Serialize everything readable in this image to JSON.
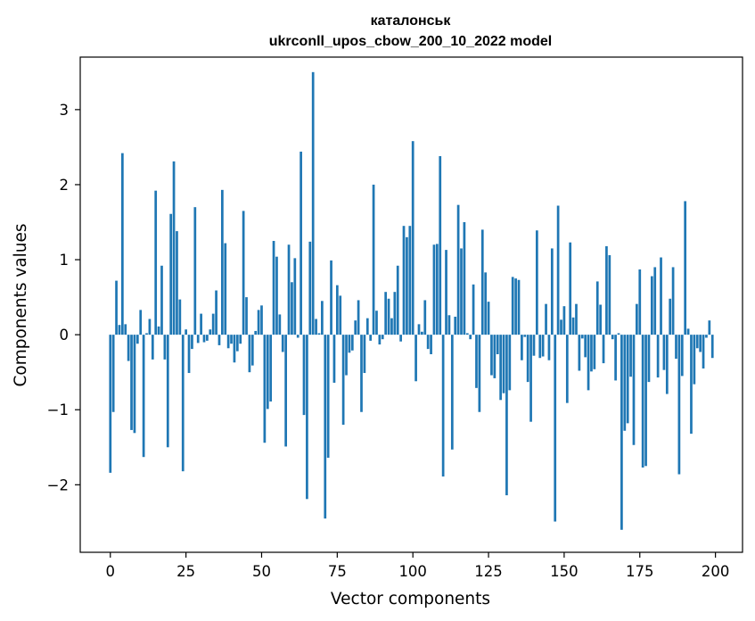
{
  "chart_data": {
    "type": "bar",
    "title": "каталонськ",
    "subtitle": "ukrconll_upos_cbow_200_10_2022 model",
    "xlabel": "Vector components",
    "ylabel": "Components values",
    "xlim": [
      -9.95,
      208.95
    ],
    "ylim": [
      -2.9,
      3.7
    ],
    "xticks": [
      0,
      25,
      50,
      75,
      100,
      125,
      150,
      175,
      200
    ],
    "yticks": [
      -2,
      -1,
      0,
      1,
      2,
      3
    ],
    "xtick_labels": [
      "0",
      "25",
      "50",
      "75",
      "100",
      "125",
      "150",
      "175",
      "200"
    ],
    "ytick_labels": [
      "−2",
      "−1",
      "0",
      "1",
      "2",
      "3"
    ],
    "bar_color": "#1f77b4",
    "grid": false,
    "legend": "none",
    "x": [
      0,
      1,
      2,
      3,
      4,
      5,
      6,
      7,
      8,
      9,
      10,
      11,
      12,
      13,
      14,
      15,
      16,
      17,
      18,
      19,
      20,
      21,
      22,
      23,
      24,
      25,
      26,
      27,
      28,
      29,
      30,
      31,
      32,
      33,
      34,
      35,
      36,
      37,
      38,
      39,
      40,
      41,
      42,
      43,
      44,
      45,
      46,
      47,
      48,
      49,
      50,
      51,
      52,
      53,
      54,
      55,
      56,
      57,
      58,
      59,
      60,
      61,
      62,
      63,
      64,
      65,
      66,
      67,
      68,
      69,
      70,
      71,
      72,
      73,
      74,
      75,
      76,
      77,
      78,
      79,
      80,
      81,
      82,
      83,
      84,
      85,
      86,
      87,
      88,
      89,
      90,
      91,
      92,
      93,
      94,
      95,
      96,
      97,
      98,
      99,
      100,
      101,
      102,
      103,
      104,
      105,
      106,
      107,
      108,
      109,
      110,
      111,
      112,
      113,
      114,
      115,
      116,
      117,
      118,
      119,
      120,
      121,
      122,
      123,
      124,
      125,
      126,
      127,
      128,
      129,
      130,
      131,
      132,
      133,
      134,
      135,
      136,
      137,
      138,
      139,
      140,
      141,
      142,
      143,
      144,
      145,
      146,
      147,
      148,
      149,
      150,
      151,
      152,
      153,
      154,
      155,
      156,
      157,
      158,
      159,
      160,
      161,
      162,
      163,
      164,
      165,
      166,
      167,
      168,
      169,
      170,
      171,
      172,
      173,
      174,
      175,
      176,
      177,
      178,
      179,
      180,
      181,
      182,
      183,
      184,
      185,
      186,
      187,
      188,
      189,
      190,
      191,
      192,
      193,
      194,
      195,
      196,
      197,
      198,
      199
    ],
    "values": [
      -1.84,
      -1.03,
      0.72,
      0.13,
      2.42,
      0.14,
      -0.35,
      -1.27,
      -1.31,
      -0.12,
      0.33,
      -1.63,
      0.02,
      0.21,
      -0.33,
      1.92,
      0.11,
      0.92,
      -0.33,
      -1.5,
      1.61,
      2.31,
      1.38,
      0.47,
      -1.82,
      0.07,
      -0.51,
      -0.19,
      1.7,
      -0.11,
      0.28,
      -0.1,
      -0.08,
      0.07,
      0.28,
      0.59,
      -0.14,
      1.93,
      1.22,
      -0.18,
      -0.12,
      -0.37,
      -0.22,
      -0.12,
      1.65,
      0.5,
      -0.5,
      -0.41,
      0.05,
      0.33,
      0.39,
      -1.44,
      -0.99,
      -0.89,
      1.25,
      1.04,
      0.27,
      -0.23,
      -1.49,
      1.2,
      0.7,
      1.02,
      -0.04,
      2.44,
      -1.07,
      -2.19,
      1.24,
      3.5,
      0.21,
      0.02,
      0.45,
      -2.45,
      -1.64,
      0.99,
      -0.64,
      0.66,
      0.52,
      -1.2,
      -0.54,
      -0.24,
      -0.21,
      0.19,
      0.46,
      -1.03,
      -0.51,
      0.22,
      -0.08,
      2.0,
      0.32,
      -0.13,
      -0.06,
      0.57,
      0.48,
      0.22,
      0.57,
      0.92,
      -0.09,
      1.45,
      1.3,
      1.45,
      2.58,
      -0.62,
      0.14,
      0.04,
      0.46,
      -0.19,
      -0.26,
      1.2,
      1.21,
      2.38,
      -1.89,
      1.13,
      0.26,
      -1.53,
      0.24,
      1.73,
      1.15,
      1.5,
      0.02,
      -0.06,
      0.67,
      -0.71,
      -1.03,
      1.4,
      0.83,
      0.44,
      -0.54,
      -0.58,
      -0.26,
      -0.87,
      -0.78,
      -2.14,
      -0.74,
      0.77,
      0.75,
      0.73,
      -0.34,
      -0.03,
      -0.63,
      -1.16,
      -0.28,
      1.39,
      -0.31,
      -0.29,
      0.41,
      -0.34,
      1.15,
      -2.49,
      1.72,
      0.2,
      0.38,
      -0.91,
      1.23,
      0.23,
      0.41,
      -0.48,
      -0.05,
      -0.3,
      -0.74,
      -0.49,
      -0.46,
      0.71,
      0.4,
      -0.38,
      1.18,
      1.06,
      -0.06,
      -0.61,
      0.02,
      -2.6,
      -1.28,
      -1.18,
      -0.56,
      -1.47,
      0.41,
      0.87,
      -1.77,
      -1.75,
      -0.63,
      0.78,
      0.9,
      -0.57,
      1.03,
      -0.47,
      -0.79,
      0.48,
      0.9,
      -0.32,
      -1.86,
      -0.55,
      1.78,
      0.08,
      -1.32,
      -0.66,
      -0.18,
      -0.23,
      -0.45,
      -0.04,
      0.19,
      -0.31
    ]
  }
}
